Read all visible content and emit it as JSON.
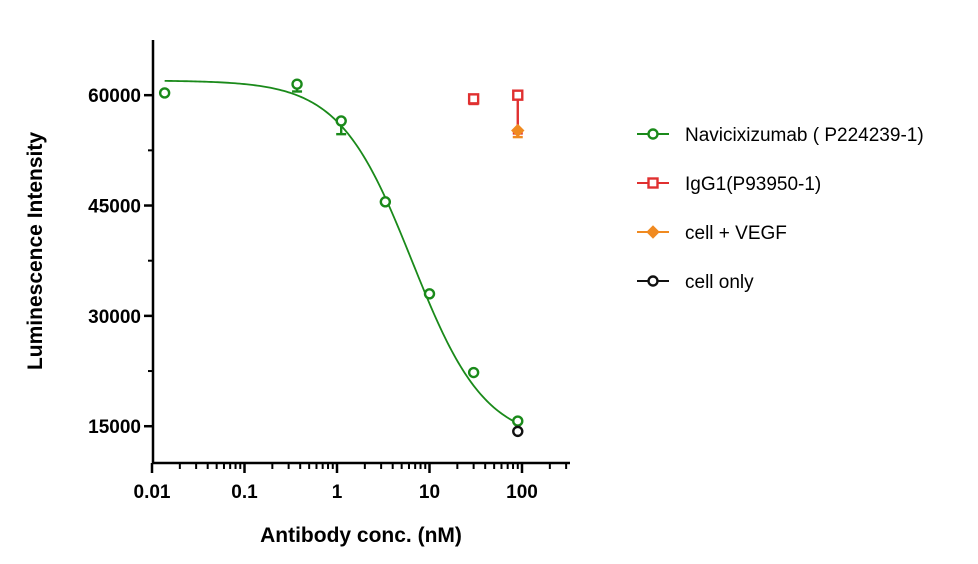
{
  "chart_data": {
    "type": "scatter",
    "title": "",
    "xlabel": "Antibody conc. (nM)",
    "ylabel": "Luminescence Intensity",
    "x_scale": "log",
    "xlim": [
      0.01,
      330
    ],
    "ylim": [
      10000,
      67500
    ],
    "x_ticks": [
      0.01,
      0.1,
      1,
      10,
      100
    ],
    "x_tick_labels": [
      "0.01",
      "0.1",
      "1",
      "10",
      "100"
    ],
    "y_ticks": [
      15000,
      30000,
      45000,
      60000
    ],
    "y_tick_labels": [
      "15000",
      "30000",
      "45000",
      "60000"
    ],
    "y_minor_ticks": [
      22500,
      37500,
      52500
    ],
    "grid": false,
    "legend_position": "right",
    "series": [
      {
        "name": "Navicixizumab ( P224239-1)",
        "color": "#1a8a1a",
        "marker": "circle",
        "points": [
          {
            "x": 0.0137,
            "y": 60300,
            "err_low": 0,
            "err_high": 0
          },
          {
            "x": 0.37,
            "y": 61500,
            "err_low": 1000,
            "err_high": 0
          },
          {
            "x": 1.11,
            "y": 56500,
            "err_low": 1800,
            "err_high": 0
          },
          {
            "x": 3.33,
            "y": 45500,
            "err_low": 0,
            "err_high": 0
          },
          {
            "x": 10,
            "y": 33000,
            "err_low": 0,
            "err_high": 0
          },
          {
            "x": 30,
            "y": 22300,
            "err_low": 0,
            "err_high": 0
          },
          {
            "x": 90,
            "y": 15700,
            "err_low": 0,
            "err_high": 0
          }
        ],
        "fit": {
          "type": "4PL",
          "top": 62000,
          "bottom": 12800,
          "ec50": 6.5,
          "hill": 1.1
        }
      },
      {
        "name": "IgG1(P93950-1)",
        "color": "#e03030",
        "marker": "square",
        "points": [
          {
            "x": 30,
            "y": 59500,
            "err_low": 700,
            "err_high": 0
          },
          {
            "x": 90,
            "y": 60000,
            "err_low": 5200,
            "err_high": 0
          }
        ]
      },
      {
        "name": "cell + VEGF",
        "color": "#f08a20",
        "marker": "diamond",
        "points": [
          {
            "x": 90,
            "y": 55200,
            "err_low": 900,
            "err_high": 0
          }
        ]
      },
      {
        "name": "cell only",
        "color": "#111111",
        "marker": "circle",
        "points": [
          {
            "x": 90,
            "y": 14300,
            "err_low": 0,
            "err_high": 0
          }
        ]
      }
    ]
  }
}
